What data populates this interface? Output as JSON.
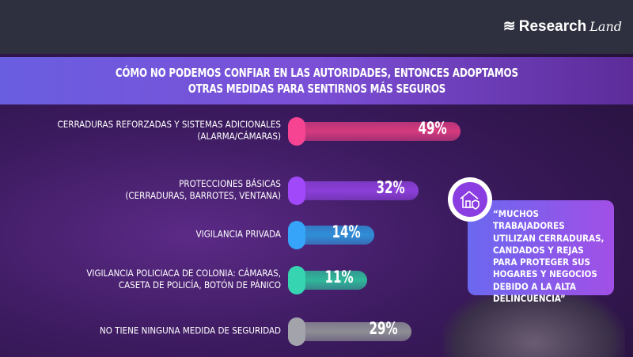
{
  "brand": {
    "logo": "ResearchLand",
    "logo_main": "Research",
    "logo_script": "Land"
  },
  "title": {
    "line1": "CÓMO NO PODEMOS CONFIAR EN LAS AUTORIDADES, ENTONCES ADOPTAMOS",
    "line2": "OTRAS MEDIDAS PARA SENTIRNOS MÁS SEGUROS"
  },
  "chart_data": {
    "type": "bar",
    "orientation": "horizontal",
    "categories": [
      "CERRADURAS REFORZADAS Y SISTEMAS ADICIONALES (ALARMA/CÁMARAS)",
      "PROTECCIONES BÁSICAS (CERRADURAS, BARROTES, VENTANA)",
      "VIGILANCIA PRIVADA",
      "VIGILANCIA POLICIACA DE COLONIA: CÁMARAS, CASETA DE POLICÍA, BOTÓN DE PÁNICO",
      "NO TIENE NINGUNA MEDIDA DE SEGURIDAD"
    ],
    "label_lines": [
      [
        "CERRADURAS REFORZADAS Y SISTEMAS ADICIONALES",
        "(ALARMA/CÁMARAS)"
      ],
      [
        "PROTECCIONES BÁSICAS",
        "(CERRADURAS, BARROTES, VENTANA)"
      ],
      [
        "VIGILANCIA PRIVADA"
      ],
      [
        "VIGILANCIA POLICIACA DE COLONIA: CÁMARAS,",
        "CASETA DE POLICÍA, BOTÓN DE PÁNICO"
      ],
      [
        "NO TIENE NINGUNA MEDIDA DE SEGURIDAD"
      ]
    ],
    "values": [
      49,
      32,
      14,
      11,
      29
    ],
    "value_labels": [
      "49%",
      "32%",
      "14%",
      "11%",
      "29%"
    ],
    "colors": [
      "#d63a7f",
      "#8b3fd9",
      "#2f8fd8",
      "#2fb89a",
      "#8e8e96"
    ],
    "unit": "%"
  },
  "callout": {
    "icon": "house-lock-icon",
    "text": "“MUCHOS TRABAJADORES UTILIZAN CERRADURAS, CANDADOS Y REJAS PARA PROTEGER SUS HOGARES Y NEGOCIOS DEBIDO A LA ALTA DELINCUENCIA”"
  }
}
